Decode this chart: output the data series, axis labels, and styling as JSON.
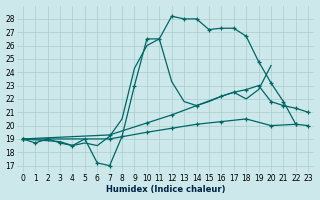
{
  "xlabel": "Humidex (Indice chaleur)",
  "bg_color": "#cce8ea",
  "grid_color": "#aacccc",
  "line_color": "#006666",
  "xlim": [
    -0.5,
    23.5
  ],
  "ylim": [
    16.5,
    29.0
  ],
  "yticks": [
    17,
    18,
    19,
    20,
    21,
    22,
    23,
    24,
    25,
    26,
    27,
    28
  ],
  "xticks": [
    0,
    1,
    2,
    3,
    4,
    5,
    6,
    7,
    8,
    9,
    10,
    11,
    12,
    13,
    14,
    15,
    16,
    17,
    18,
    19,
    20,
    21,
    22,
    23
  ],
  "line1_x": [
    0,
    1,
    2,
    3,
    4,
    5,
    6,
    7,
    8,
    9,
    10,
    11,
    12,
    13,
    14,
    15,
    16,
    17,
    18,
    19,
    20,
    21,
    22
  ],
  "line1_y": [
    19.0,
    18.7,
    19.0,
    18.7,
    18.5,
    19.0,
    17.2,
    17.0,
    19.2,
    23.0,
    26.5,
    26.5,
    28.2,
    28.0,
    28.0,
    27.2,
    27.3,
    27.3,
    26.7,
    24.8,
    23.2,
    21.8,
    20.1
  ],
  "line2_x": [
    0,
    3,
    4,
    5,
    6,
    7,
    8,
    9,
    10,
    11,
    12,
    13,
    14,
    15,
    16,
    17,
    18,
    19,
    20
  ],
  "line2_y": [
    19.0,
    18.8,
    18.5,
    18.7,
    18.5,
    19.2,
    20.5,
    24.3,
    26.0,
    26.5,
    23.3,
    21.8,
    21.5,
    21.8,
    22.2,
    22.5,
    22.0,
    22.7,
    24.5
  ],
  "line3_x": [
    0,
    7,
    10,
    12,
    14,
    16,
    17,
    18,
    19,
    20,
    21,
    22,
    23
  ],
  "line3_y": [
    19.0,
    19.3,
    20.2,
    20.8,
    21.5,
    22.2,
    22.5,
    22.7,
    23.0,
    21.8,
    21.5,
    21.3,
    21.0
  ],
  "line4_x": [
    0,
    7,
    10,
    12,
    14,
    16,
    18,
    20,
    22,
    23
  ],
  "line4_y": [
    19.0,
    19.0,
    19.5,
    19.8,
    20.1,
    20.3,
    20.5,
    20.0,
    20.1,
    20.0
  ]
}
